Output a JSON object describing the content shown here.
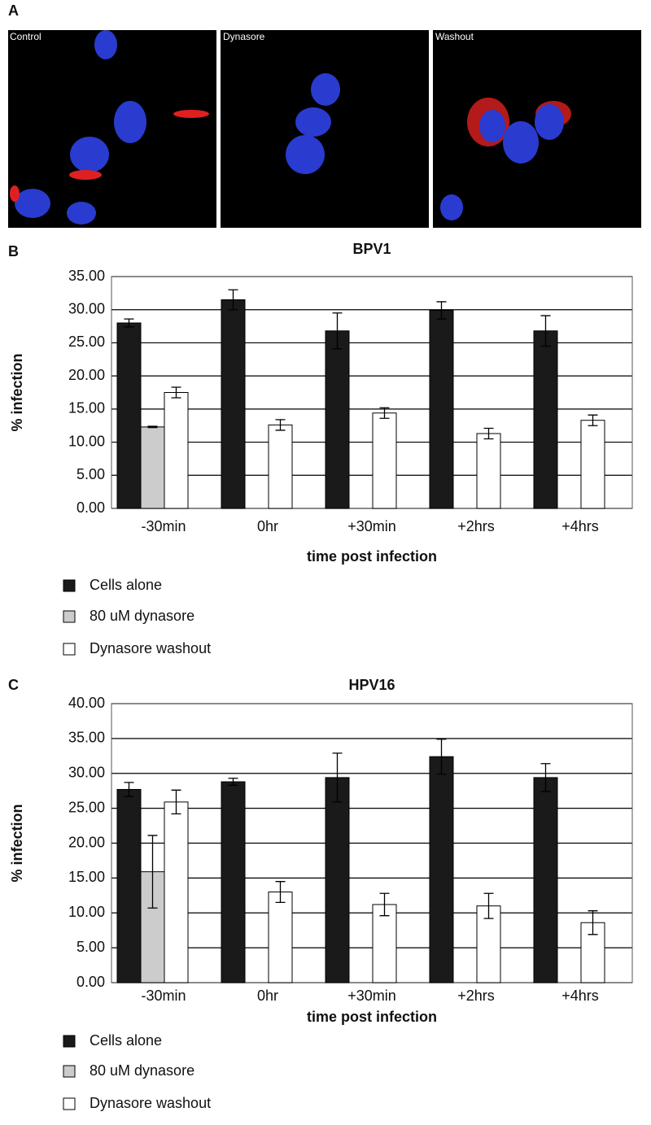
{
  "panels": {
    "labels": [
      "A",
      "B",
      "C"
    ],
    "images": [
      "Control",
      "Dynasore",
      "Washout"
    ]
  },
  "chart_data": [
    {
      "type": "bar",
      "title": "BPV1",
      "ylabel": "% infection",
      "xlabel": "time post infection",
      "categories": [
        "-30min",
        "0hr",
        "+30min",
        "+2hrs",
        "+4hrs"
      ],
      "series": [
        {
          "name": "Cells alone",
          "color": "#1a1a1a",
          "values": [
            28.0,
            31.5,
            26.8,
            29.9,
            26.8
          ],
          "errors": [
            0.6,
            1.5,
            2.7,
            1.3,
            2.3
          ]
        },
        {
          "name": "80 uM dynasore",
          "color": "#cccccc",
          "values": [
            12.3,
            null,
            null,
            null,
            null
          ],
          "errors": [
            0.1,
            null,
            null,
            null,
            null
          ]
        },
        {
          "name": "Dynasore washout",
          "color": "#ffffff",
          "values": [
            17.5,
            12.6,
            14.4,
            11.3,
            13.3
          ],
          "errors": [
            0.8,
            0.8,
            0.8,
            0.8,
            0.8
          ]
        }
      ],
      "ylim": [
        0,
        35
      ],
      "yticks": [
        {
          "value": 0,
          "label": "0.00"
        },
        {
          "value": 5,
          "label": "5.00"
        },
        {
          "value": 10,
          "label": "10.00"
        },
        {
          "value": 15,
          "label": "15.00"
        },
        {
          "value": 20,
          "label": "20.00"
        },
        {
          "value": 25,
          "label": "25.00"
        },
        {
          "value": 30,
          "label": "30.00"
        },
        {
          "value": 35,
          "label": "35.00"
        }
      ],
      "grid": true
    },
    {
      "type": "bar",
      "title": "HPV16",
      "ylabel": "% infection",
      "xlabel": "time post infection",
      "categories": [
        "-30min",
        "0hr",
        "+30min",
        "+2hrs",
        "+4hrs"
      ],
      "series": [
        {
          "name": "Cells alone",
          "color": "#1a1a1a",
          "values": [
            27.7,
            28.8,
            29.4,
            32.4,
            29.4
          ],
          "errors": [
            1.0,
            0.5,
            3.5,
            2.5,
            2.0
          ]
        },
        {
          "name": "80 uM dynasore",
          "color": "#cccccc",
          "values": [
            15.9,
            null,
            null,
            null,
            null
          ],
          "errors": [
            5.2,
            null,
            null,
            null,
            null
          ]
        },
        {
          "name": "Dynasore washout",
          "color": "#ffffff",
          "values": [
            25.9,
            13.0,
            11.2,
            11.0,
            8.6
          ],
          "errors": [
            1.7,
            1.5,
            1.6,
            1.8,
            1.7
          ]
        }
      ],
      "ylim": [
        0,
        40
      ],
      "yticks": [
        {
          "value": 0,
          "label": "0.00"
        },
        {
          "value": 5,
          "label": "5.00"
        },
        {
          "value": 10,
          "label": "10.00"
        },
        {
          "value": 15,
          "label": "15.00"
        },
        {
          "value": 20,
          "label": "20.00"
        },
        {
          "value": 25,
          "label": "25.00"
        },
        {
          "value": 30,
          "label": "30.00"
        },
        {
          "value": 35,
          "label": "35.00"
        },
        {
          "value": 40,
          "label": "40.00"
        }
      ],
      "grid": true
    }
  ]
}
